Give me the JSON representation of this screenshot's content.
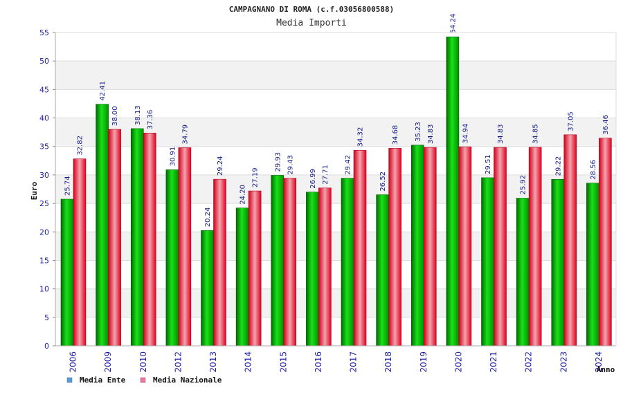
{
  "chart_data": {
    "type": "bar",
    "title": "CAMPAGNANO DI ROMA (c.f.03056800588)",
    "subtitle": "Media Importi",
    "ylabel": "Euro",
    "xlabel": "Anno",
    "ylim": [
      0,
      55
    ],
    "yticks": [
      0,
      5,
      10,
      15,
      20,
      25,
      30,
      35,
      40,
      45,
      50,
      55
    ],
    "categories": [
      "2006",
      "2009",
      "2010",
      "2012",
      "2013",
      "2014",
      "2015",
      "2016",
      "2017",
      "2018",
      "2019",
      "2020",
      "2021",
      "2022",
      "2023",
      "2024"
    ],
    "series": [
      {
        "name": "Media Ente",
        "color": "#00b400",
        "values": [
          25.74,
          42.41,
          38.13,
          30.91,
          20.24,
          24.2,
          29.93,
          26.99,
          29.42,
          26.52,
          35.23,
          54.24,
          29.51,
          25.92,
          29.22,
          28.56
        ],
        "labels": [
          "25.74",
          "42.41",
          "38.13",
          "30.91",
          "20.24",
          "24.20",
          "29.93",
          "26.99",
          "29.42",
          "26.52",
          "35.23",
          "54.24",
          "29.51",
          "25.92",
          "29.22",
          "28.56"
        ]
      },
      {
        "name": "Media Nazionale",
        "color": "#e8102a",
        "values": [
          32.82,
          38.0,
          37.36,
          34.79,
          29.24,
          27.19,
          29.43,
          27.71,
          34.32,
          34.68,
          34.83,
          34.94,
          34.83,
          34.85,
          37.05,
          36.46
        ],
        "labels": [
          "32.82",
          "38.00",
          "37.36",
          "34.79",
          "29.24",
          "27.19",
          "29.43",
          "27.71",
          "34.32",
          "34.68",
          "34.83",
          "34.94",
          "34.83",
          "34.85",
          "37.05",
          "36.46"
        ]
      }
    ],
    "legend": {
      "placement": "bottom-left",
      "items": [
        {
          "name": "Media Ente",
          "color": "#5b9bd5"
        },
        {
          "name": "Media Nazionale",
          "color": "#e07ba0"
        }
      ]
    },
    "grid": true,
    "grid_bands": true
  }
}
